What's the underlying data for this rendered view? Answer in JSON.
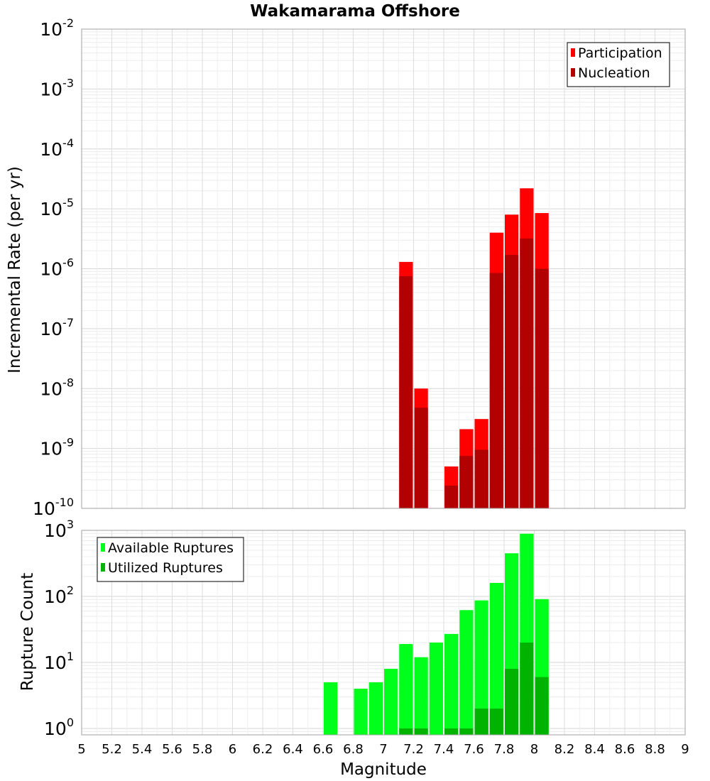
{
  "chart_data": [
    {
      "type": "bar",
      "title": "Wakamarama Offshore",
      "xlabel": "",
      "ylabel": "Incremental Rate (per yr)",
      "xlim": [
        5,
        9
      ],
      "ylim": [
        1e-10,
        0.01
      ],
      "yscale": "log",
      "grid": true,
      "legend_position": "top-right",
      "bar_width": 0.1,
      "y_ticks": [
        {
          "base": "10",
          "exp": "-10"
        },
        {
          "base": "10",
          "exp": "-9"
        },
        {
          "base": "10",
          "exp": "-8"
        },
        {
          "base": "10",
          "exp": "-7"
        },
        {
          "base": "10",
          "exp": "-6"
        },
        {
          "base": "10",
          "exp": "-5"
        },
        {
          "base": "10",
          "exp": "-4"
        },
        {
          "base": "10",
          "exp": "-3"
        },
        {
          "base": "10",
          "exp": "-2"
        }
      ],
      "series": [
        {
          "name": "Participation",
          "color": "#ff0000",
          "x": [
            7.15,
            7.25,
            7.45,
            7.55,
            7.65,
            7.75,
            7.85,
            7.95,
            8.05
          ],
          "values": [
            1.3e-06,
            1e-08,
            5e-10,
            2.1e-09,
            3.1e-09,
            4e-06,
            8e-06,
            2.2e-05,
            8.5e-06
          ]
        },
        {
          "name": "Nucleation",
          "color": "#b30000",
          "x": [
            7.15,
            7.25,
            7.45,
            7.55,
            7.65,
            7.75,
            7.85,
            7.95,
            8.05
          ],
          "values": [
            7.5e-07,
            4.8e-09,
            2.4e-10,
            7.5e-10,
            9.5e-10,
            8.5e-07,
            1.7e-06,
            3.2e-06,
            1e-06
          ]
        }
      ]
    },
    {
      "type": "bar",
      "title": "",
      "xlabel": "Magnitude",
      "ylabel": "Rupture Count",
      "xlim": [
        5,
        9
      ],
      "ylim": [
        0.8,
        1000
      ],
      "yscale": "log",
      "grid": true,
      "legend_position": "top-left",
      "bar_width": 0.1,
      "y_ticks": [
        {
          "value": 1,
          "base": "10",
          "exp": "0"
        },
        {
          "value": 10,
          "base": "10",
          "exp": "1"
        },
        {
          "value": 100,
          "base": "10",
          "exp": "2"
        },
        {
          "value": 1000,
          "base": "10",
          "exp": "3"
        }
      ],
      "x_ticks": [
        "5",
        "5.2",
        "5.4",
        "5.6",
        "5.8",
        "6",
        "6.2",
        "6.4",
        "6.6",
        "6.8",
        "7",
        "7.2",
        "7.4",
        "7.6",
        "7.8",
        "8",
        "8.2",
        "8.4",
        "8.6",
        "8.8",
        "9"
      ],
      "series": [
        {
          "name": "Available Ruptures",
          "color": "#00ff1a",
          "x": [
            6.65,
            6.85,
            6.95,
            7.05,
            7.15,
            7.25,
            7.35,
            7.45,
            7.55,
            7.65,
            7.75,
            7.85,
            7.95,
            8.05
          ],
          "values": [
            5,
            4,
            5,
            8,
            19,
            12,
            20,
            27,
            62,
            87,
            160,
            450,
            890,
            91
          ]
        },
        {
          "name": "Utilized Ruptures",
          "color": "#00b300",
          "x": [
            7.15,
            7.25,
            7.45,
            7.55,
            7.65,
            7.75,
            7.85,
            7.95,
            8.05
          ],
          "values": [
            1,
            1,
            1,
            1,
            2,
            2,
            8,
            20,
            6
          ]
        }
      ]
    }
  ]
}
